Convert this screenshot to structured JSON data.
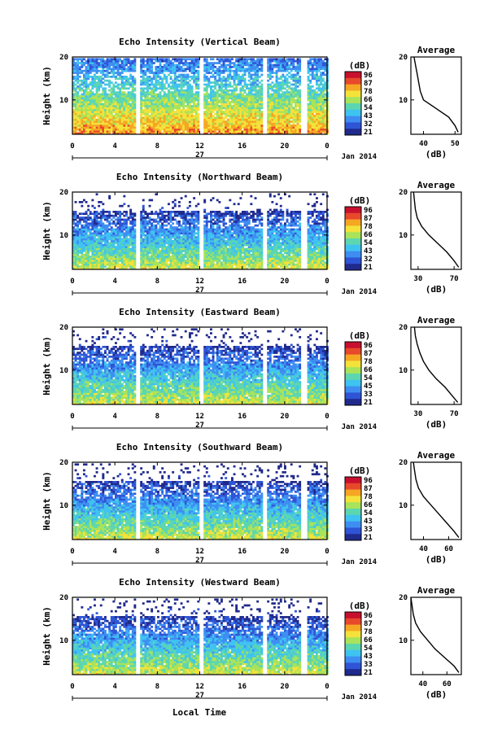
{
  "figure": {
    "xlabel": "Local Time"
  },
  "colors": {
    "scale": [
      "#202a8c",
      "#2f55d6",
      "#3e8ef2",
      "#3fc3f0",
      "#5cd6b0",
      "#a8e35a",
      "#f4e23a",
      "#f5a623",
      "#e8492b",
      "#c8102e"
    ]
  },
  "chart_data": [
    {
      "type": "heatmap",
      "title": "Echo Intensity (Vertical Beam)",
      "ylabel": "Height (km)",
      "x_ticks": [
        "0",
        "4",
        "8",
        "12",
        "16",
        "20",
        "0"
      ],
      "y_ticks": [
        "20",
        "10"
      ],
      "xlim": [
        0,
        24
      ],
      "ylim": [
        2,
        20
      ],
      "date_day": "27",
      "date_label": "Jan 2014",
      "colorbar": {
        "unit": "(dB)",
        "ticks": [
          "96",
          "87",
          "78",
          "66",
          "54",
          "43",
          "32",
          "21"
        ],
        "range": [
          21,
          96
        ]
      },
      "gaps": [
        [
          5.9,
          6.2
        ],
        [
          11.9,
          12.2
        ],
        [
          17.8,
          18.2
        ],
        [
          21.4,
          22.1
        ]
      ],
      "profile": {
        "title": "Average",
        "xlabel": "(dB)",
        "x_ticks": [
          "40",
          "50"
        ],
        "y_ticks": [
          "20",
          "10"
        ],
        "xlim": [
          36,
          52
        ],
        "ylim": [
          2,
          20
        ],
        "height_km": [
          2.5,
          4,
          6,
          8,
          10,
          12,
          14,
          16,
          18,
          20
        ],
        "values_db": [
          51,
          50,
          48,
          44,
          40,
          39,
          38.5,
          38,
          37.5,
          37
        ]
      }
    },
    {
      "type": "heatmap",
      "title": "Echo Intensity (Northward Beam)",
      "ylabel": "Height (km)",
      "x_ticks": [
        "0",
        "4",
        "8",
        "12",
        "16",
        "20",
        "0"
      ],
      "y_ticks": [
        "20",
        "10"
      ],
      "xlim": [
        0,
        24
      ],
      "ylim": [
        2,
        20
      ],
      "date_day": "27",
      "date_label": "Jan 2014",
      "colorbar": {
        "unit": "(dB)",
        "ticks": [
          "96",
          "87",
          "78",
          "66",
          "54",
          "43",
          "32",
          "21"
        ],
        "range": [
          21,
          96
        ]
      },
      "gaps": [
        [
          5.9,
          6.2
        ],
        [
          11.9,
          12.2
        ],
        [
          17.8,
          18.2
        ],
        [
          21.4,
          22.1
        ]
      ],
      "profile": {
        "title": "Average",
        "xlabel": "(dB)",
        "x_ticks": [
          "30",
          "70"
        ],
        "y_ticks": [
          "20",
          "10"
        ],
        "xlim": [
          22,
          78
        ],
        "ylim": [
          2,
          20
        ],
        "height_km": [
          2.5,
          4,
          6,
          8,
          10,
          12,
          14,
          16,
          18,
          20
        ],
        "values_db": [
          75,
          70,
          62,
          52,
          42,
          34,
          29,
          27,
          26,
          25
        ]
      }
    },
    {
      "type": "heatmap",
      "title": "Echo Intensity (Eastward Beam)",
      "ylabel": "Height (km)",
      "x_ticks": [
        "0",
        "4",
        "8",
        "12",
        "16",
        "20",
        "0"
      ],
      "y_ticks": [
        "20",
        "10"
      ],
      "xlim": [
        0,
        24
      ],
      "ylim": [
        2,
        20
      ],
      "date_day": "27",
      "date_label": "Jan 2014",
      "colorbar": {
        "unit": "(dB)",
        "ticks": [
          "96",
          "87",
          "78",
          "66",
          "54",
          "45",
          "33",
          "21"
        ],
        "range": [
          21,
          96
        ]
      },
      "gaps": [
        [
          5.9,
          6.2
        ],
        [
          11.9,
          12.2
        ],
        [
          17.8,
          18.2
        ],
        [
          21.4,
          22.1
        ]
      ],
      "profile": {
        "title": "Average",
        "xlabel": "(dB)",
        "x_ticks": [
          "30",
          "70"
        ],
        "y_ticks": [
          "20",
          "10"
        ],
        "xlim": [
          22,
          78
        ],
        "ylim": [
          2,
          20
        ],
        "height_km": [
          2.5,
          4,
          6,
          8,
          10,
          12,
          14,
          16,
          18,
          20
        ],
        "values_db": [
          74,
          68,
          60,
          50,
          42,
          36,
          32,
          29,
          27,
          26
        ]
      }
    },
    {
      "type": "heatmap",
      "title": "Echo Intensity (Southward Beam)",
      "ylabel": "Height (km)",
      "x_ticks": [
        "0",
        "4",
        "8",
        "12",
        "16",
        "20",
        "0"
      ],
      "y_ticks": [
        "20",
        "10"
      ],
      "xlim": [
        0,
        24
      ],
      "ylim": [
        2,
        20
      ],
      "date_day": "27",
      "date_label": "Jan 2014",
      "colorbar": {
        "unit": "(dB)",
        "ticks": [
          "96",
          "87",
          "78",
          "66",
          "54",
          "43",
          "33",
          "21"
        ],
        "range": [
          21,
          96
        ]
      },
      "gaps": [
        [
          5.9,
          6.2
        ],
        [
          11.9,
          12.2
        ],
        [
          17.8,
          18.2
        ],
        [
          21.4,
          22.1
        ]
      ],
      "profile": {
        "title": "Average",
        "xlabel": "(dB)",
        "x_ticks": [
          "40",
          "60"
        ],
        "y_ticks": [
          "20",
          "10"
        ],
        "xlim": [
          30,
          70
        ],
        "ylim": [
          2,
          20
        ],
        "height_km": [
          2.5,
          4,
          6,
          8,
          10,
          12,
          14,
          16,
          18,
          20
        ],
        "values_db": [
          68,
          64,
          58,
          52,
          46,
          40,
          36,
          34,
          33,
          32
        ]
      }
    },
    {
      "type": "heatmap",
      "title": "Echo Intensity (Westward Beam)",
      "ylabel": "Height (km)",
      "x_ticks": [
        "0",
        "4",
        "8",
        "12",
        "16",
        "20",
        "0"
      ],
      "y_ticks": [
        "20",
        "10"
      ],
      "xlim": [
        0,
        24
      ],
      "ylim": [
        2,
        20
      ],
      "date_day": "27",
      "date_label": "Jan 2014",
      "colorbar": {
        "unit": "(dB)",
        "ticks": [
          "96",
          "87",
          "78",
          "66",
          "54",
          "43",
          "33",
          "21"
        ],
        "range": [
          21,
          96
        ]
      },
      "gaps": [
        [
          5.9,
          6.2
        ],
        [
          11.9,
          12.2
        ],
        [
          17.8,
          18.2
        ],
        [
          21.4,
          22.1
        ]
      ],
      "profile": {
        "title": "Average",
        "xlabel": "(dB)",
        "x_ticks": [
          "40",
          "60"
        ],
        "y_ticks": [
          "20",
          "10"
        ],
        "xlim": [
          30,
          72
        ],
        "ylim": [
          2,
          20
        ],
        "height_km": [
          2.5,
          4,
          6,
          8,
          10,
          12,
          14,
          16,
          18,
          20
        ],
        "values_db": [
          70,
          66,
          58,
          50,
          44,
          38,
          34,
          32,
          31,
          30
        ]
      }
    }
  ]
}
